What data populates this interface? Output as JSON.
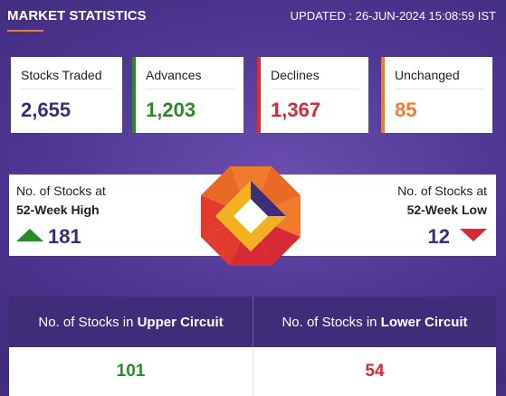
{
  "header": {
    "title": "MARKET STATISTICS",
    "updated": "UPDATED : 26-JUN-2024 15:08:59 IST"
  },
  "cards": [
    {
      "label": "Stocks Traded",
      "value": "2,655"
    },
    {
      "label": "Advances",
      "value": "1,203"
    },
    {
      "label": "Declines",
      "value": "1,367"
    },
    {
      "label": "Unchanged",
      "value": "85"
    }
  ],
  "week52": {
    "high_line1": "No. of Stocks at",
    "high_line2": "52-Week High",
    "high_value": "181",
    "low_line1": "No. of Stocks at",
    "low_line2": "52-Week Low",
    "low_value": "12"
  },
  "circuit": {
    "upper_prefix": "No. of Stocks in ",
    "upper_bold": "Upper Circuit",
    "lower_prefix": "No. of Stocks in ",
    "lower_bold": "Lower Circuit",
    "upper_value": "101",
    "lower_value": "54"
  },
  "colors": {
    "background": "#4e3591",
    "advances": "#2a8a2a",
    "declines": "#d62a35",
    "unchanged": "#f07b2a",
    "value_purple": "#3c2c7c"
  },
  "icons": {
    "up": "triangle-up-icon",
    "down": "triangle-down-icon",
    "logo": "nse-logo"
  }
}
